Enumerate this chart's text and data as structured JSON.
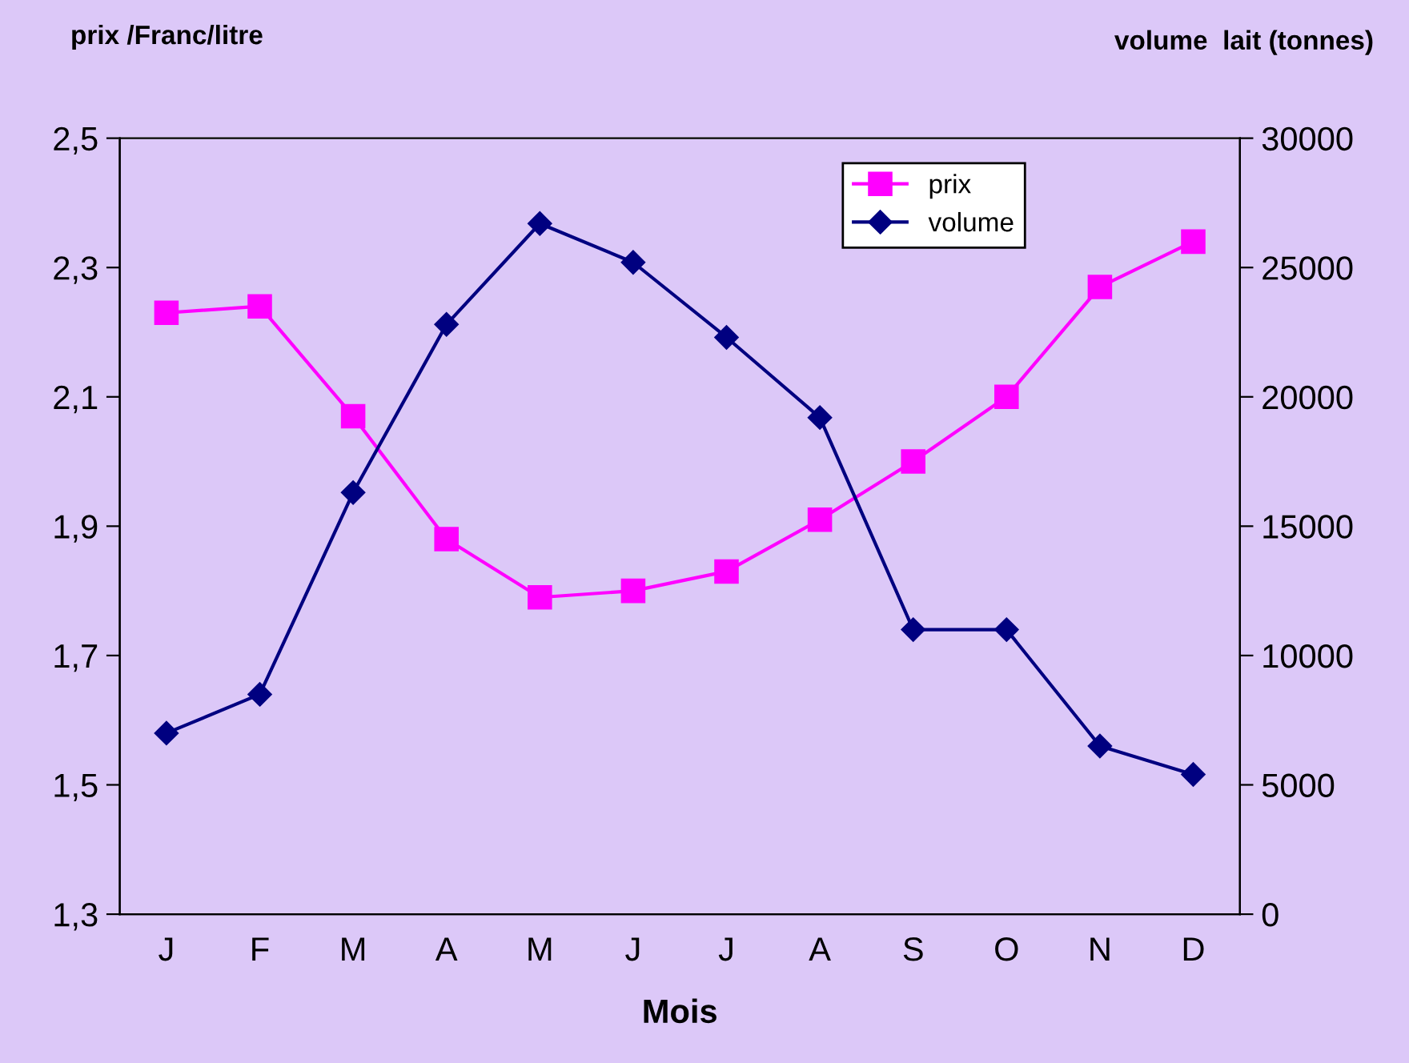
{
  "chart_data": {
    "type": "line",
    "ylabel": "prix /Franc/litre",
    "y2label": "volume  lait (tonnes)",
    "xlabel": "Mois",
    "categories": [
      "J",
      "F",
      "M",
      "A",
      "M",
      "J",
      "J",
      "A",
      "S",
      "O",
      "N",
      "D"
    ],
    "series": [
      {
        "name": "prix",
        "color": "#ff00ff",
        "marker": "square",
        "values": [
          2.23,
          2.24,
          2.07,
          1.88,
          1.79,
          1.8,
          1.83,
          1.91,
          2.0,
          2.1,
          2.27,
          2.34
        ]
      },
      {
        "name": "volume",
        "color": "#000080",
        "marker": "diamond",
        "axis": "y2",
        "values": [
          7000,
          8500,
          16300,
          22800,
          26700,
          25200,
          22300,
          19200,
          11000,
          11000,
          6500,
          5400
        ]
      }
    ],
    "ylim": [
      1.3,
      2.5
    ],
    "yticks": [
      {
        "value": 1.3,
        "label": "1,3"
      },
      {
        "value": 1.5,
        "label": "1,5"
      },
      {
        "value": 1.7,
        "label": "1,7"
      },
      {
        "value": 1.9,
        "label": "1,9"
      },
      {
        "value": 2.1,
        "label": "2,1"
      },
      {
        "value": 2.3,
        "label": "2,3"
      },
      {
        "value": 2.5,
        "label": "2,5"
      }
    ],
    "y2lim": [
      0,
      30000
    ],
    "y2ticks": [
      0,
      5000,
      10000,
      15000,
      20000,
      25000,
      30000
    ],
    "grid": false,
    "legend": "top right",
    "line_style": "solid"
  }
}
